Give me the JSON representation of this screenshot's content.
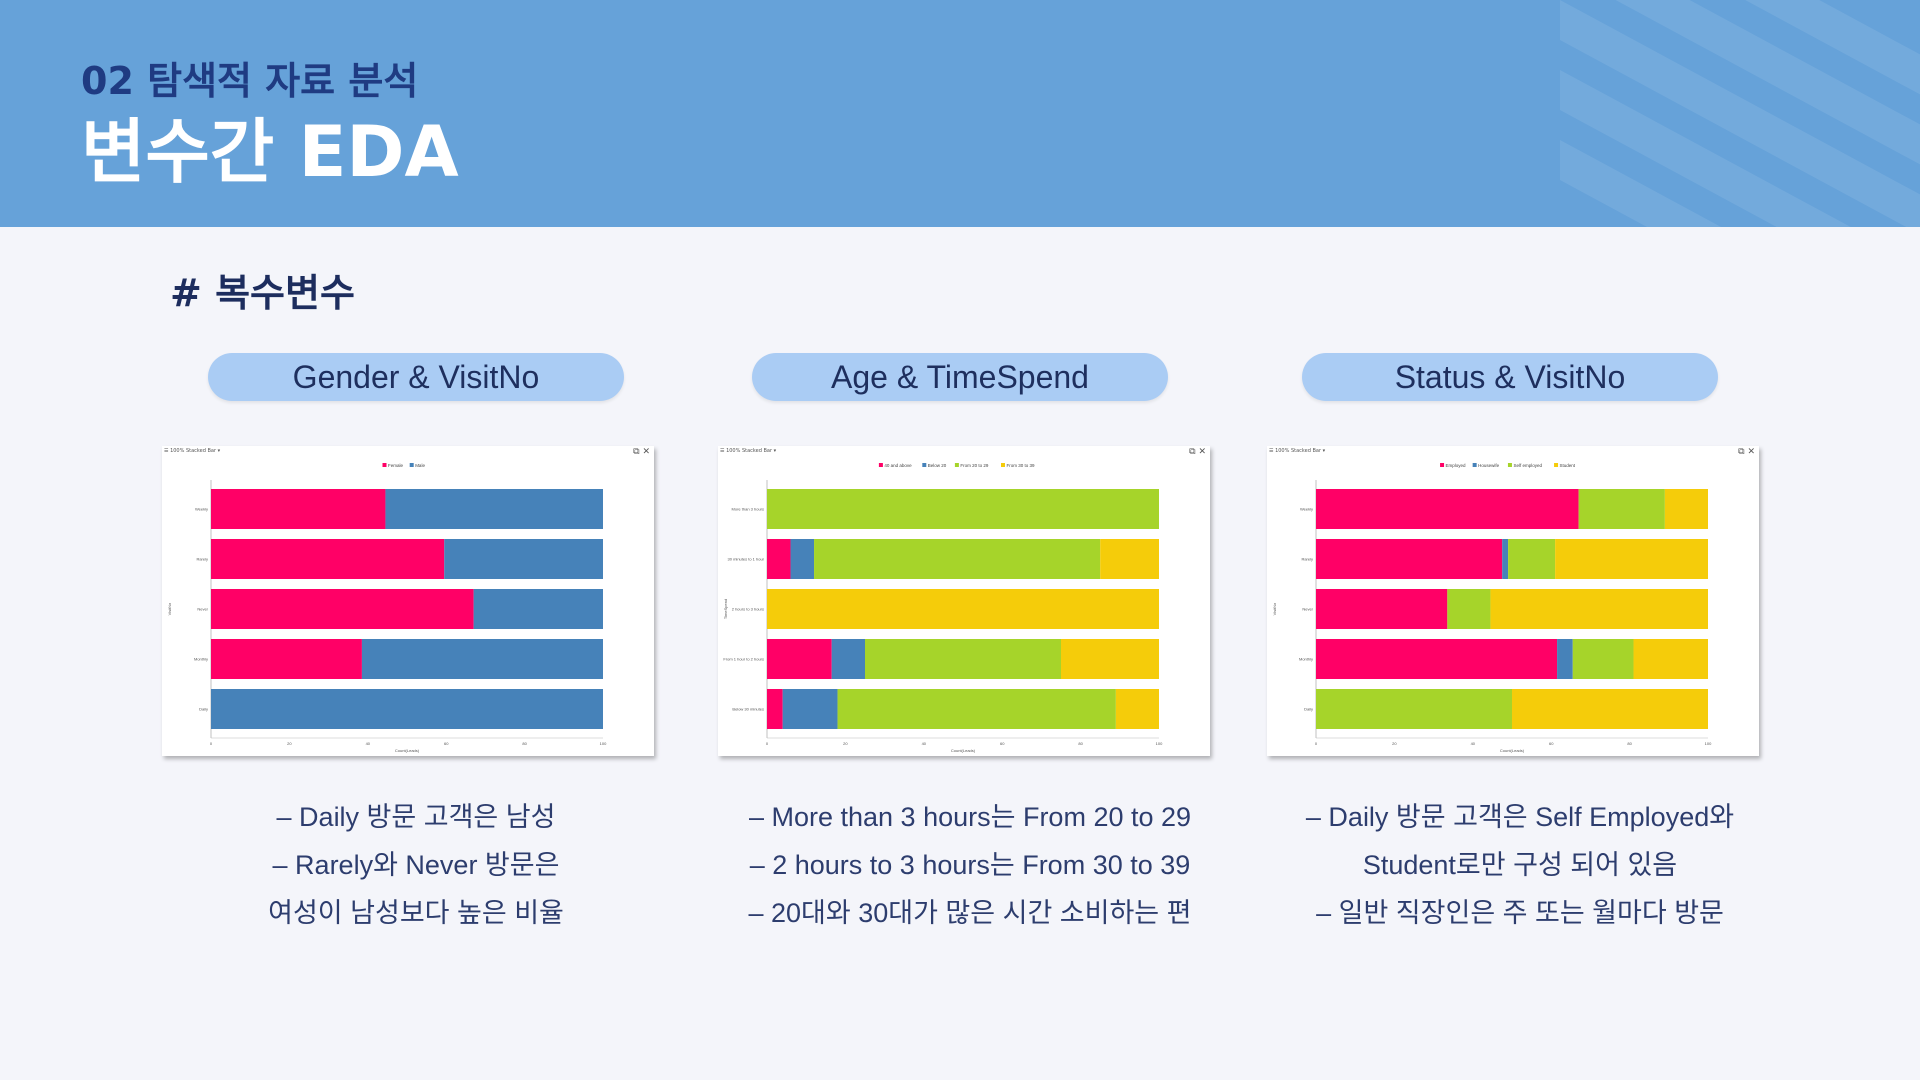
{
  "header": {
    "subtitle": "02 탐색적 자료 분석",
    "title": "변수간 EDA"
  },
  "section_title": "# 복수변수",
  "panels": [
    {
      "pill": "Gender & VisitNo",
      "chart_header": "☰ 100% Stacked Bar  ▾",
      "window_icons": "⧉ ✕",
      "notes": [
        "–   Daily 방문 고객은 남성",
        "–   Rarely와 Never 방문은",
        "여성이 남성보다 높은 비율"
      ]
    },
    {
      "pill": "Age & TimeSpend",
      "chart_header": "☰ 100% Stacked Bar  ▾",
      "window_icons": "⧉ ✕",
      "notes": [
        "–   More than 3 hours는 From 20 to 29",
        "–   2 hours to 3 hours는 From 30 to 39",
        "–   20대와 30대가 많은 시간 소비하는 편"
      ]
    },
    {
      "pill": "Status & VisitNo",
      "chart_header": "☰ 100% Stacked Bar  ▾",
      "window_icons": "⧉ ✕",
      "notes": [
        "–   Daily 방문 고객은 Self Employed와",
        "Student로만 구성 되어 있음",
        "–   일반 직장인은 주 또는 월마다 방문"
      ]
    }
  ],
  "chart_data": [
    {
      "type": "bar",
      "stacked": "100%",
      "orientation": "horizontal",
      "categories": [
        "Weekly",
        "Rarely",
        "Never",
        "Monthly",
        "Daily"
      ],
      "ylabel": "VisitNo",
      "xlabel": "Count(Leads)",
      "xlim": [
        0,
        100
      ],
      "xticks": [
        "0",
        "20",
        "40",
        "60",
        "80",
        "100"
      ],
      "legend_position": "top-center",
      "series": [
        {
          "name": "Female",
          "color": "#ff0066",
          "values": [
            44.5,
            59.5,
            67,
            38.5,
            0
          ]
        },
        {
          "name": "Male",
          "color": "#4682b9",
          "values": [
            55.5,
            40.5,
            33,
            61.5,
            100
          ]
        }
      ]
    },
    {
      "type": "bar",
      "stacked": "100%",
      "orientation": "horizontal",
      "categories": [
        "More than 3 hours",
        "30 minutes to 1 hour",
        "2 hours to 3 hours",
        "From 1 hour to 2 hours",
        "Below 30 minutes"
      ],
      "ylabel": "TimeSpend",
      "xlabel": "Count(Leads)",
      "xlim": [
        0,
        100
      ],
      "xticks": [
        "0",
        "20",
        "40",
        "60",
        "80",
        "100"
      ],
      "legend_position": "top-center",
      "series": [
        {
          "name": "40 and above",
          "color": "#ff0066",
          "values": [
            0,
            6,
            0,
            16.5,
            4
          ]
        },
        {
          "name": "Below 20",
          "color": "#4682b9",
          "values": [
            0,
            6,
            0,
            8.5,
            14
          ]
        },
        {
          "name": "From 20 to 29",
          "color": "#a6d42a",
          "values": [
            100,
            73,
            0,
            50,
            71
          ]
        },
        {
          "name": "From 30 to 39",
          "color": "#f5cc0a",
          "values": [
            0,
            15,
            100,
            25,
            11
          ]
        }
      ]
    },
    {
      "type": "bar",
      "stacked": "100%",
      "orientation": "horizontal",
      "categories": [
        "Weekly",
        "Rarely",
        "Never",
        "Monthly",
        "Daily"
      ],
      "ylabel": "VisitNo",
      "xlabel": "Count(Leads)",
      "xlim": [
        0,
        100
      ],
      "xticks": [
        "0",
        "20",
        "40",
        "60",
        "80",
        "100"
      ],
      "legend_position": "top-center",
      "series": [
        {
          "name": "Employed",
          "color": "#ff0066",
          "values": [
            67,
            47.5,
            33.5,
            61.5,
            0
          ]
        },
        {
          "name": "Housewife",
          "color": "#4682b9",
          "values": [
            0,
            1.5,
            0,
            4,
            0
          ]
        },
        {
          "name": "Self employed",
          "color": "#a6d42a",
          "values": [
            22,
            12,
            11,
            15.5,
            50
          ]
        },
        {
          "name": "Student",
          "color": "#f5cc0a",
          "values": [
            11,
            39,
            55.5,
            19,
            50
          ]
        }
      ]
    }
  ]
}
